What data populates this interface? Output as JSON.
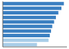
{
  "chart_data": {
    "type": "bar",
    "orientation": "horizontal",
    "categories": [
      null,
      null,
      null,
      null,
      null,
      null,
      null,
      null,
      null,
      null
    ],
    "values": [
      1000,
      960,
      910,
      870,
      840,
      810,
      790,
      770,
      750,
      560
    ],
    "colors": [
      "#3a7fc1",
      "#3a7fc1",
      "#3a7fc1",
      "#3a7fc1",
      "#3a7fc1",
      "#3a7fc1",
      "#3a7fc1",
      "#3a7fc1",
      "#a8cde8",
      "#a8cde8"
    ],
    "xlim": [
      0,
      1050
    ],
    "tick_labels": false,
    "grid": false
  }
}
